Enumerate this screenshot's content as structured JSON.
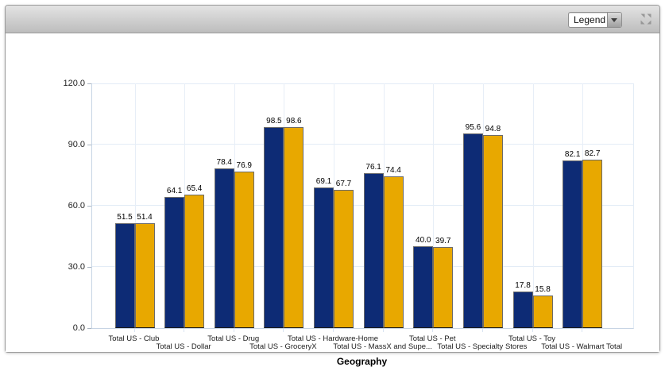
{
  "window": {
    "toolbar": {
      "legend_dropdown": {
        "value": "Legend"
      },
      "resize_icon": "collapse-arrows"
    }
  },
  "chart_data": {
    "type": "bar",
    "title": "",
    "xlabel": "Geography",
    "ylabel": "",
    "ylim": [
      0,
      120
    ],
    "yticks": [
      0,
      30,
      60,
      90,
      120
    ],
    "ytick_format": "one-decimal",
    "grid": true,
    "legend_position": "collapsed-dropdown",
    "categories": [
      "Total US - Club",
      "Total US - Dollar",
      "Total US - Drug",
      "Total US - GroceryX",
      "Total US - Hardware-Home",
      "Total US - MassX and Supe...",
      "Total US - Pet",
      "Total US - Specialty Stores",
      "Total US - Toy",
      "Total US - Walmart Total"
    ],
    "series": [
      {
        "color": "#0d2b75",
        "values": [
          51.5,
          64.1,
          78.4,
          98.5,
          69.1,
          76.1,
          40.0,
          95.6,
          17.8,
          82.1
        ]
      },
      {
        "color": "#e8a800",
        "values": [
          51.4,
          65.4,
          76.9,
          98.6,
          67.7,
          74.4,
          39.7,
          94.8,
          15.8,
          82.7
        ]
      }
    ],
    "colors": {
      "bar_blue": "#0d2b75",
      "bar_gold": "#e8a800",
      "gridline": "#e3ecf6",
      "axis_line": "#c7d4e4"
    }
  }
}
